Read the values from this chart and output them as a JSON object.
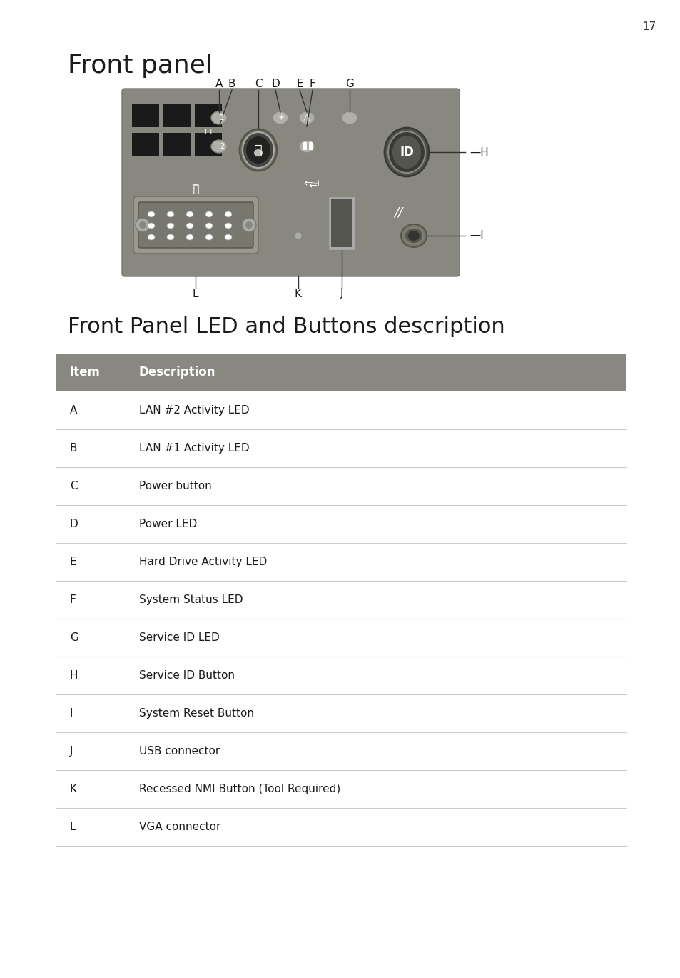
{
  "page_number": "17",
  "title_front_panel": "Front panel",
  "title_table": "Front Panel LED and Buttons description",
  "table_header": [
    "Item",
    "Description"
  ],
  "table_rows": [
    [
      "A",
      "LAN #2 Activity LED"
    ],
    [
      "B",
      "LAN #1 Activity LED"
    ],
    [
      "C",
      "Power button"
    ],
    [
      "D",
      "Power LED"
    ],
    [
      "E",
      "Hard Drive Activity LED"
    ],
    [
      "F",
      "System Status LED"
    ],
    [
      "G",
      "Service ID LED"
    ],
    [
      "H",
      "Service ID Button"
    ],
    [
      "I",
      "System Reset Button"
    ],
    [
      "J",
      "USB connector"
    ],
    [
      "K",
      "Recessed NMI Button (Tool Required)"
    ],
    [
      "L",
      "VGA connector"
    ]
  ],
  "panel_color": "#888880",
  "panel_dark": "#6a6a64",
  "panel_shadow": "#555550",
  "bg_color": "#ffffff",
  "text_color": "#1a1a1a",
  "header_bg": "#808078",
  "font_size_page": 11,
  "font_size_title1": 26,
  "font_size_title2": 22,
  "font_size_label": 11,
  "font_size_table_header": 12,
  "font_size_table": 11
}
